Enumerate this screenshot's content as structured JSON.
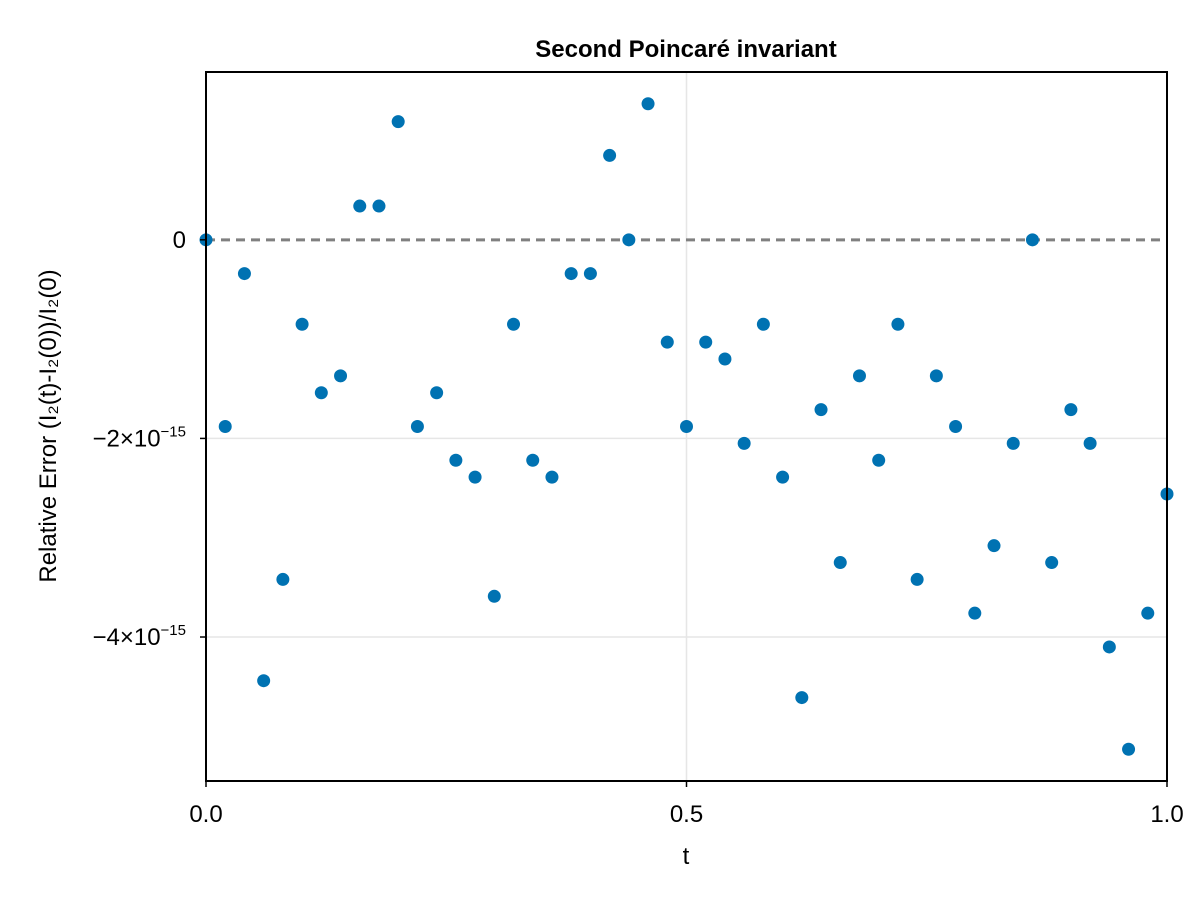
{
  "chart_data": {
    "type": "scatter",
    "title": "Second Poincaré invariant",
    "xlabel": "t",
    "ylabel": "Relative Error (I₂(t)-I₂(0))/I₂(0)",
    "xlim": [
      0.0,
      1.0
    ],
    "ylim": [
      -5.45e-15,
      1.69e-15
    ],
    "grid": true,
    "x_ticks": [
      {
        "value": 0.0,
        "label": "0.0"
      },
      {
        "value": 0.5,
        "label": "0.5"
      },
      {
        "value": 1.0,
        "label": "1.0"
      }
    ],
    "y_ticks": [
      {
        "value": 0,
        "mantissa": "0",
        "exponent": ""
      },
      {
        "value": -2e-15,
        "mantissa": "−2×10",
        "exponent": "−15"
      },
      {
        "value": -4e-15,
        "mantissa": "−4×10",
        "exponent": "−15"
      }
    ],
    "reference_line": {
      "y": 0,
      "style": "dashed",
      "color": "#808080"
    },
    "marker_color": "#0072b2",
    "series": [
      {
        "x": [
          0.0,
          0.02,
          0.04,
          0.06,
          0.08,
          0.1,
          0.12,
          0.14,
          0.16,
          0.18,
          0.2,
          0.22,
          0.24,
          0.26,
          0.28,
          0.3,
          0.32,
          0.34,
          0.36,
          0.38,
          0.4,
          0.42,
          0.44,
          0.46,
          0.48,
          0.5,
          0.52,
          0.54,
          0.56,
          0.58,
          0.6,
          0.62,
          0.64,
          0.66,
          0.68,
          0.7,
          0.72,
          0.74,
          0.76,
          0.78,
          0.8,
          0.82,
          0.84,
          0.86,
          0.88,
          0.9,
          0.92,
          0.94,
          0.96,
          0.98,
          1.0
        ],
        "y": [
          0,
          -1.88e-15,
          -3.4e-16,
          -4.44e-15,
          -3.42e-15,
          -8.5e-16,
          -1.54e-15,
          -1.37e-15,
          3.4e-16,
          3.4e-16,
          1.19e-15,
          -1.88e-15,
          -1.54e-15,
          -2.22e-15,
          -2.39e-15,
          -3.59e-15,
          -8.5e-16,
          -2.22e-15,
          -2.39e-15,
          -3.4e-16,
          -3.4e-16,
          8.5e-16,
          0,
          1.37e-15,
          -1.03e-15,
          -1.88e-15,
          -1.03e-15,
          -1.2e-15,
          -2.05e-15,
          -8.5e-16,
          -2.39e-15,
          -4.61e-15,
          -1.71e-15,
          -3.25e-15,
          -1.37e-15,
          -2.22e-15,
          -8.5e-16,
          -3.42e-15,
          -1.37e-15,
          -1.88e-15,
          -3.76e-15,
          -3.08e-15,
          -2.05e-15,
          0,
          -3.25e-15,
          -1.71e-15,
          -2.05e-15,
          -4.1e-15,
          -5.13e-15,
          -3.76e-15,
          -2.56e-15
        ]
      }
    ]
  }
}
